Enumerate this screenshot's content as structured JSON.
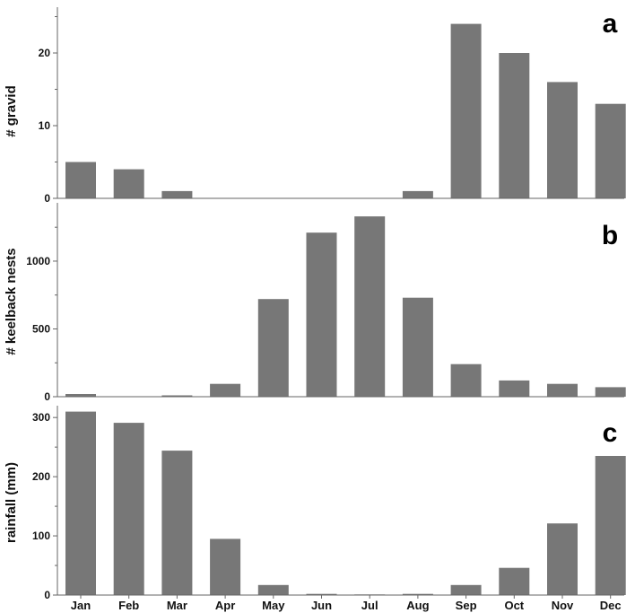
{
  "chart_data": [
    {
      "type": "bar",
      "panel_label": "a",
      "ylabel": "# gravid",
      "categories": [
        "Jan",
        "Feb",
        "Mar",
        "Apr",
        "May",
        "Jun",
        "Jul",
        "Aug",
        "Sep",
        "Oct",
        "Nov",
        "Dec"
      ],
      "values": [
        5,
        4,
        1,
        0,
        0,
        0,
        0,
        1,
        24,
        20,
        16,
        13
      ],
      "ylim": [
        0,
        26.3
      ],
      "yticks": [
        0,
        10,
        20
      ],
      "ytick_labels": [
        "0",
        "10",
        "20"
      ]
    },
    {
      "type": "bar",
      "panel_label": "b",
      "ylabel": "# keelback nests",
      "categories": [
        "Jan",
        "Feb",
        "Mar",
        "Apr",
        "May",
        "Jun",
        "Jul",
        "Aug",
        "Sep",
        "Oct",
        "Nov",
        "Dec"
      ],
      "values": [
        20,
        0,
        10,
        95,
        720,
        1210,
        1330,
        730,
        240,
        120,
        95,
        70
      ],
      "ylim": [
        0,
        1430
      ],
      "yticks": [
        0,
        500,
        1000
      ],
      "ytick_labels": [
        "0",
        "500",
        "1000"
      ]
    },
    {
      "type": "bar",
      "panel_label": "c",
      "ylabel": "rainfall (mm)",
      "categories": [
        "Jan",
        "Feb",
        "Mar",
        "Apr",
        "May",
        "Jun",
        "Jul",
        "Aug",
        "Sep",
        "Oct",
        "Nov",
        "Dec"
      ],
      "values": [
        310,
        291,
        244,
        95,
        17,
        2,
        1,
        2,
        17,
        46,
        121,
        235
      ],
      "ylim": [
        0,
        320
      ],
      "yticks": [
        0,
        100,
        200,
        300
      ],
      "ytick_labels": [
        "0",
        "100",
        "200",
        "300"
      ]
    }
  ],
  "colors": {
    "bar": "#777777",
    "axis": "#666666"
  }
}
